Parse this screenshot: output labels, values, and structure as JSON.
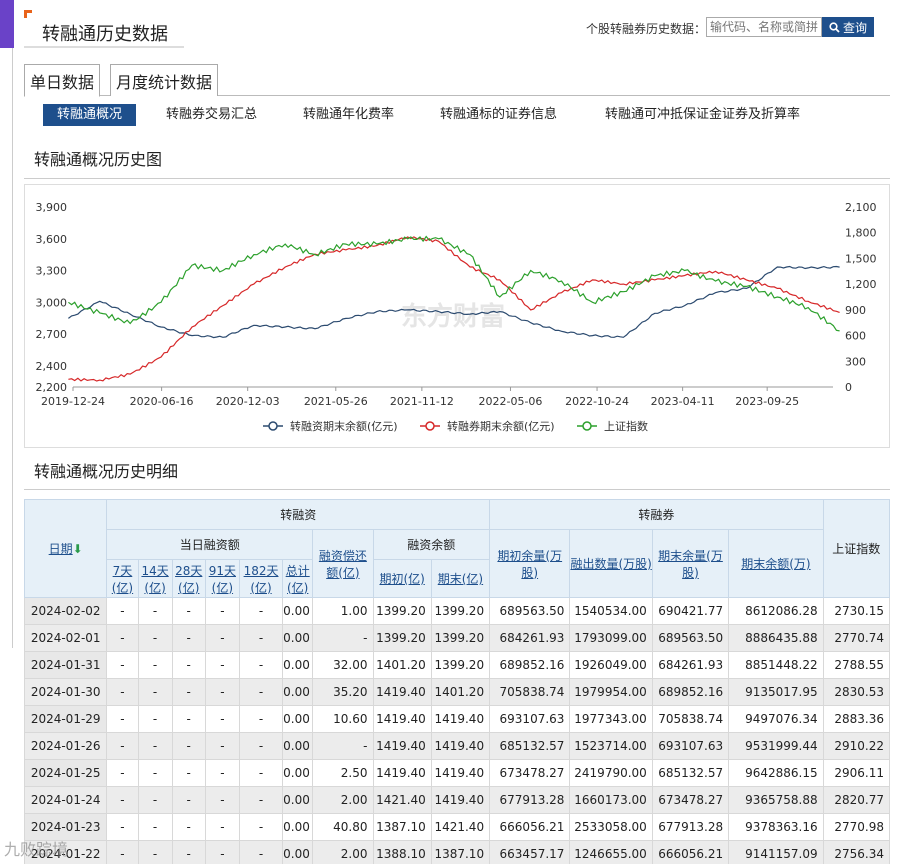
{
  "header": {
    "title": "转融通历史数据",
    "search_label": "个股转融券历史数据：",
    "search_placeholder": "输代码、名称或简拼",
    "search_button": "查询"
  },
  "tabs": [
    {
      "label": "单日数据",
      "active": true
    },
    {
      "label": "月度统计数据",
      "active": false
    }
  ],
  "subnav": [
    {
      "label": "转融通概况",
      "active": true
    },
    {
      "label": "转融券交易汇总",
      "active": false
    },
    {
      "label": "转融通年化费率",
      "active": false
    },
    {
      "label": "转融通标的证券信息",
      "active": false
    },
    {
      "label": "转融通可冲抵保证金证券及折算率",
      "active": false
    }
  ],
  "chart_section_title": "转融通概况历史图",
  "detail_section_title": "转融通概况历史明细",
  "chart_data": {
    "type": "line",
    "x_ticks": [
      "2019-12-24",
      "2020-06-16",
      "2020-12-03",
      "2021-05-26",
      "2021-11-12",
      "2022-05-06",
      "2022-10-24",
      "2023-04-11",
      "2023-09-25"
    ],
    "y_left_ticks": [
      "3,900",
      "3,600",
      "3,300",
      "3,000",
      "2,700",
      "2,400",
      "2,200"
    ],
    "y_right_ticks": [
      "2,100",
      "1,800",
      "1,500",
      "1,200",
      "900",
      "600",
      "300",
      "0"
    ],
    "y_left_range": [
      2200,
      3900
    ],
    "y_right_range": [
      0,
      2100
    ],
    "grid": false,
    "legend_position": "bottom",
    "watermark": "东方财富",
    "series": [
      {
        "name": "转融资期末余额(亿元)",
        "color": "#2b4a6f",
        "axis": "right",
        "dates": [
          "2019-12",
          "2020-02",
          "2020-04",
          "2020-06",
          "2020-08",
          "2020-10",
          "2020-12",
          "2021-02",
          "2021-04",
          "2021-06",
          "2021-08",
          "2021-10",
          "2021-12",
          "2022-02",
          "2022-04",
          "2022-06",
          "2022-08",
          "2022-10",
          "2022-12",
          "2023-02",
          "2023-04",
          "2023-06",
          "2023-08",
          "2023-10",
          "2023-12",
          "2024-02"
        ],
        "values": [
          800,
          1000,
          850,
          700,
          600,
          580,
          720,
          700,
          680,
          800,
          880,
          900,
          880,
          850,
          880,
          750,
          650,
          600,
          580,
          860,
          950,
          1100,
          1150,
          1400,
          1390,
          1399
        ]
      },
      {
        "name": "转融券期末余额(亿元)",
        "color": "#d62728",
        "axis": "right",
        "dates": [
          "2019-12",
          "2020-02",
          "2020-04",
          "2020-06",
          "2020-08",
          "2020-10",
          "2020-12",
          "2021-02",
          "2021-04",
          "2021-06",
          "2021-08",
          "2021-10",
          "2021-12",
          "2022-02",
          "2022-04",
          "2022-06",
          "2022-08",
          "2022-10",
          "2022-12",
          "2023-02",
          "2023-04",
          "2023-06",
          "2023-08",
          "2023-10",
          "2023-12",
          "2024-02"
        ],
        "values": [
          90,
          80,
          150,
          350,
          700,
          950,
          1200,
          1400,
          1550,
          1600,
          1650,
          1750,
          1700,
          1400,
          1250,
          900,
          1100,
          1250,
          1200,
          1250,
          1300,
          1350,
          1250,
          1150,
          1000,
          870
        ]
      },
      {
        "name": "上证指数",
        "color": "#2ca02c",
        "axis": "left",
        "dates": [
          "2019-12",
          "2020-02",
          "2020-04",
          "2020-06",
          "2020-08",
          "2020-10",
          "2020-12",
          "2021-02",
          "2021-04",
          "2021-06",
          "2021-08",
          "2021-10",
          "2021-12",
          "2022-02",
          "2022-04",
          "2022-06",
          "2022-08",
          "2022-10",
          "2022-12",
          "2023-02",
          "2023-04",
          "2023-06",
          "2023-08",
          "2023-10",
          "2023-12",
          "2024-02"
        ],
        "values": [
          3000,
          2900,
          2800,
          3000,
          3350,
          3300,
          3450,
          3550,
          3450,
          3550,
          3550,
          3600,
          3600,
          3450,
          3050,
          3300,
          3200,
          3000,
          3100,
          3250,
          3300,
          3200,
          3150,
          3050,
          2950,
          2730
        ]
      }
    ]
  },
  "table": {
    "group_date": "日期",
    "group_financing": "转融资",
    "group_lending": "转融券",
    "group_index": "上证指数",
    "sub_daily": "当日融资额",
    "sub_repay": "融资偿还额(亿)",
    "sub_balance": "融资余额",
    "term_cols": [
      "7天(亿)",
      "14天(亿)",
      "28天(亿)",
      "91天(亿)",
      "182天(亿)",
      "总计(亿)"
    ],
    "balance_cols": [
      "期初(亿)",
      "期末(亿)"
    ],
    "lending_cols": [
      "期初余量(万股)",
      "融出数量(万股)",
      "期末余量(万股)",
      "期末余额(万)"
    ],
    "rows": [
      [
        "2024-02-02",
        "-",
        "-",
        "-",
        "-",
        "-",
        "0.00",
        "1.00",
        "1399.20",
        "1399.20",
        "689563.50",
        "1540534.00",
        "690421.77",
        "8612086.28",
        "2730.15"
      ],
      [
        "2024-02-01",
        "-",
        "-",
        "-",
        "-",
        "-",
        "0.00",
        "-",
        "1399.20",
        "1399.20",
        "684261.93",
        "1793099.00",
        "689563.50",
        "8886435.88",
        "2770.74"
      ],
      [
        "2024-01-31",
        "-",
        "-",
        "-",
        "-",
        "-",
        "0.00",
        "32.00",
        "1401.20",
        "1399.20",
        "689852.16",
        "1926049.00",
        "684261.93",
        "8851448.22",
        "2788.55"
      ],
      [
        "2024-01-30",
        "-",
        "-",
        "-",
        "-",
        "-",
        "0.00",
        "35.20",
        "1419.40",
        "1401.20",
        "705838.74",
        "1979954.00",
        "689852.16",
        "9135017.95",
        "2830.53"
      ],
      [
        "2024-01-29",
        "-",
        "-",
        "-",
        "-",
        "-",
        "0.00",
        "10.60",
        "1419.40",
        "1419.40",
        "693107.63",
        "1977343.00",
        "705838.74",
        "9497076.34",
        "2883.36"
      ],
      [
        "2024-01-26",
        "-",
        "-",
        "-",
        "-",
        "-",
        "0.00",
        "-",
        "1419.40",
        "1419.40",
        "685132.57",
        "1523714.00",
        "693107.63",
        "9531999.44",
        "2910.22"
      ],
      [
        "2024-01-25",
        "-",
        "-",
        "-",
        "-",
        "-",
        "0.00",
        "2.50",
        "1419.40",
        "1419.40",
        "673478.27",
        "2419790.00",
        "685132.57",
        "9642886.15",
        "2906.11"
      ],
      [
        "2024-01-24",
        "-",
        "-",
        "-",
        "-",
        "-",
        "0.00",
        "2.00",
        "1421.40",
        "1419.40",
        "677913.28",
        "1660173.00",
        "673478.27",
        "9365758.88",
        "2820.77"
      ],
      [
        "2024-01-23",
        "-",
        "-",
        "-",
        "-",
        "-",
        "0.00",
        "40.80",
        "1387.10",
        "1421.40",
        "666056.21",
        "2533058.00",
        "677913.28",
        "9378363.16",
        "2770.98"
      ],
      [
        "2024-01-22",
        "-",
        "-",
        "-",
        "-",
        "-",
        "0.00",
        "2.00",
        "1388.10",
        "1387.10",
        "663457.17",
        "1246655.00",
        "666056.21",
        "9141157.09",
        "2756.34"
      ]
    ]
  },
  "overlay_logo": "九败踪境"
}
